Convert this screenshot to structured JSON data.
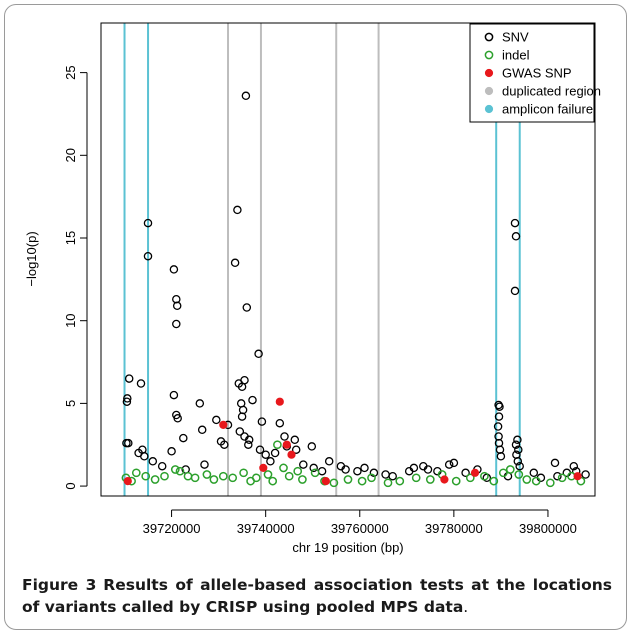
{
  "chart_data": {
    "type": "scatter",
    "xlabel": "chr 19 position (bp)",
    "ylabel": "−log10(p)",
    "xlim": [
      39705000,
      39810000
    ],
    "ylim": [
      -0.6,
      28
    ],
    "x_ticks": [
      39720000,
      39740000,
      39760000,
      39780000,
      39800000
    ],
    "x_tick_labels": [
      "39720000",
      "39740000",
      "39760000",
      "39780000",
      "39800000"
    ],
    "y_ticks": [
      0,
      5,
      10,
      15,
      20,
      25
    ],
    "y_tick_labels": [
      "0",
      "5",
      "10",
      "15",
      "20",
      "25"
    ],
    "grid": false,
    "legend_position": "top-right",
    "legend": [
      {
        "label": "SNV",
        "marker": "open-circle",
        "color": "#000000"
      },
      {
        "label": "indel",
        "marker": "open-circle",
        "color": "#2ca02c"
      },
      {
        "label": "GWAS SNP",
        "marker": "filled-circle",
        "color": "#e8181c"
      },
      {
        "label": "duplicated region",
        "marker": "filled-circle",
        "color": "#bdbdbd"
      },
      {
        "label": "amplicon failure",
        "marker": "filled-circle",
        "color": "#5bc2d3"
      }
    ],
    "vertical_lines": [
      {
        "x": 39710000,
        "type": "amplicon failure",
        "color": "#5bc2d3"
      },
      {
        "x": 39715000,
        "type": "amplicon failure",
        "color": "#5bc2d3"
      },
      {
        "x": 39732000,
        "type": "duplicated region",
        "color": "#bdbdbd"
      },
      {
        "x": 39739000,
        "type": "duplicated region",
        "color": "#bdbdbd"
      },
      {
        "x": 39755000,
        "type": "duplicated region",
        "color": "#bdbdbd"
      },
      {
        "x": 39764000,
        "type": "duplicated region",
        "color": "#bdbdbd"
      },
      {
        "x": 39789000,
        "type": "amplicon failure",
        "color": "#5bc2d3"
      },
      {
        "x": 39794000,
        "type": "amplicon failure",
        "color": "#5bc2d3"
      }
    ],
    "series": [
      {
        "name": "SNV",
        "points": [
          [
            39710500,
            5.1
          ],
          [
            39710600,
            5.3
          ],
          [
            39711000,
            6.5
          ],
          [
            39713500,
            6.2
          ],
          [
            39710800,
            2.6
          ],
          [
            39710400,
            2.6
          ],
          [
            39713000,
            2.0
          ],
          [
            39713800,
            2.2
          ],
          [
            39714200,
            1.8
          ],
          [
            39715000,
            15.9
          ],
          [
            39715000,
            13.9
          ],
          [
            39716000,
            1.5
          ],
          [
            39720500,
            13.1
          ],
          [
            39721000,
            11.3
          ],
          [
            39721200,
            10.9
          ],
          [
            39721000,
            9.8
          ],
          [
            39720500,
            5.5
          ],
          [
            39721000,
            4.3
          ],
          [
            39721300,
            4.1
          ],
          [
            39722500,
            2.9
          ],
          [
            39720000,
            2.1
          ],
          [
            39726000,
            5.0
          ],
          [
            39726500,
            3.4
          ],
          [
            39729500,
            4.0
          ],
          [
            39730500,
            2.7
          ],
          [
            39731200,
            2.5
          ],
          [
            39732000,
            3.7
          ],
          [
            39734000,
            16.7
          ],
          [
            39733500,
            13.5
          ],
          [
            39735000,
            6.0
          ],
          [
            39734300,
            6.2
          ],
          [
            39735800,
            23.6
          ],
          [
            39736000,
            10.8
          ],
          [
            39735500,
            6.4
          ],
          [
            39734800,
            5.0
          ],
          [
            39735200,
            4.6
          ],
          [
            39735000,
            4.2
          ],
          [
            39734500,
            3.3
          ],
          [
            39735500,
            3.0
          ],
          [
            39736500,
            2.8
          ],
          [
            39736300,
            2.5
          ],
          [
            39738500,
            8.0
          ],
          [
            39737200,
            5.2
          ],
          [
            39739200,
            3.9
          ],
          [
            39738800,
            2.2
          ],
          [
            39740000,
            1.9
          ],
          [
            39742000,
            2.0
          ],
          [
            39743000,
            3.8
          ],
          [
            39744000,
            3.0
          ],
          [
            39744500,
            2.4
          ],
          [
            39746200,
            2.8
          ],
          [
            39746500,
            2.2
          ],
          [
            39749800,
            2.4
          ],
          [
            39750200,
            1.1
          ],
          [
            39753500,
            1.5
          ],
          [
            39756000,
            1.2
          ],
          [
            39757000,
            1.0
          ],
          [
            39759500,
            0.9
          ],
          [
            39761000,
            1.1
          ],
          [
            39763000,
            0.8
          ],
          [
            39767000,
            0.6
          ],
          [
            39770500,
            0.9
          ],
          [
            39773500,
            1.2
          ],
          [
            39774500,
            1.0
          ],
          [
            39776500,
            0.9
          ],
          [
            39779000,
            1.3
          ],
          [
            39780000,
            1.4
          ],
          [
            39782500,
            0.8
          ],
          [
            39785000,
            1.0
          ],
          [
            39789500,
            4.9
          ],
          [
            39789700,
            4.8
          ],
          [
            39789600,
            4.2
          ],
          [
            39789400,
            3.6
          ],
          [
            39789500,
            3.0
          ],
          [
            39789600,
            2.6
          ],
          [
            39789800,
            2.2
          ],
          [
            39790000,
            1.8
          ],
          [
            39793000,
            15.9
          ],
          [
            39793200,
            15.1
          ],
          [
            39793000,
            11.8
          ],
          [
            39793500,
            2.8
          ],
          [
            39793200,
            2.5
          ],
          [
            39793700,
            2.2
          ],
          [
            39793300,
            1.9
          ],
          [
            39793600,
            1.5
          ],
          [
            39794000,
            1.2
          ],
          [
            39797000,
            0.8
          ],
          [
            39798500,
            0.5
          ],
          [
            39801500,
            1.4
          ],
          [
            39802000,
            0.6
          ],
          [
            39804000,
            0.8
          ],
          [
            39805500,
            1.2
          ],
          [
            39806000,
            0.9
          ],
          [
            39808000,
            0.7
          ],
          [
            39718000,
            1.2
          ],
          [
            39723000,
            1.0
          ],
          [
            39727000,
            1.3
          ],
          [
            39741000,
            1.5
          ],
          [
            39748000,
            1.3
          ],
          [
            39752000,
            0.9
          ],
          [
            39765500,
            0.7
          ],
          [
            39771500,
            1.1
          ],
          [
            39787000,
            0.5
          ],
          [
            39791500,
            0.6
          ]
        ]
      },
      {
        "name": "indel",
        "points": [
          [
            39710300,
            0.5
          ],
          [
            39711500,
            0.3
          ],
          [
            39712500,
            0.8
          ],
          [
            39714500,
            0.6
          ],
          [
            39716500,
            0.4
          ],
          [
            39718500,
            0.6
          ],
          [
            39720800,
            1.0
          ],
          [
            39721800,
            0.9
          ],
          [
            39723500,
            0.6
          ],
          [
            39725000,
            0.5
          ],
          [
            39727500,
            0.7
          ],
          [
            39729000,
            0.4
          ],
          [
            39731000,
            0.6
          ],
          [
            39733000,
            0.5
          ],
          [
            39735300,
            0.8
          ],
          [
            39736800,
            0.3
          ],
          [
            39738000,
            0.5
          ],
          [
            39740500,
            0.7
          ],
          [
            39741500,
            0.3
          ],
          [
            39742500,
            2.5
          ],
          [
            39743800,
            1.1
          ],
          [
            39745000,
            0.6
          ],
          [
            39746800,
            0.9
          ],
          [
            39747800,
            0.4
          ],
          [
            39750500,
            0.8
          ],
          [
            39752500,
            0.3
          ],
          [
            39754500,
            0.2
          ],
          [
            39757500,
            0.4
          ],
          [
            39760500,
            0.3
          ],
          [
            39762500,
            0.5
          ],
          [
            39766000,
            0.2
          ],
          [
            39768500,
            0.3
          ],
          [
            39772000,
            0.5
          ],
          [
            39775000,
            0.4
          ],
          [
            39777500,
            0.7
          ],
          [
            39780500,
            0.3
          ],
          [
            39783500,
            0.5
          ],
          [
            39786500,
            0.6
          ],
          [
            39788500,
            0.3
          ],
          [
            39790500,
            0.8
          ],
          [
            39792000,
            1.0
          ],
          [
            39793800,
            0.7
          ],
          [
            39795500,
            0.4
          ],
          [
            39797500,
            0.3
          ],
          [
            39800500,
            0.2
          ],
          [
            39803000,
            0.5
          ],
          [
            39805000,
            0.6
          ],
          [
            39807000,
            0.3
          ]
        ]
      },
      {
        "name": "GWAS SNP",
        "points": [
          [
            39710700,
            0.3
          ],
          [
            39731000,
            3.7
          ],
          [
            39739500,
            1.1
          ],
          [
            39743000,
            5.1
          ],
          [
            39744500,
            2.5
          ],
          [
            39745500,
            1.9
          ],
          [
            39752800,
            0.3
          ],
          [
            39778000,
            0.4
          ],
          [
            39784500,
            0.8
          ],
          [
            39806300,
            0.6
          ]
        ]
      }
    ]
  },
  "caption": {
    "label": "Figure 3",
    "text": "Results of allele-based association tests at the locations of variants called by CRISP using pooled MPS data",
    "end": "."
  }
}
